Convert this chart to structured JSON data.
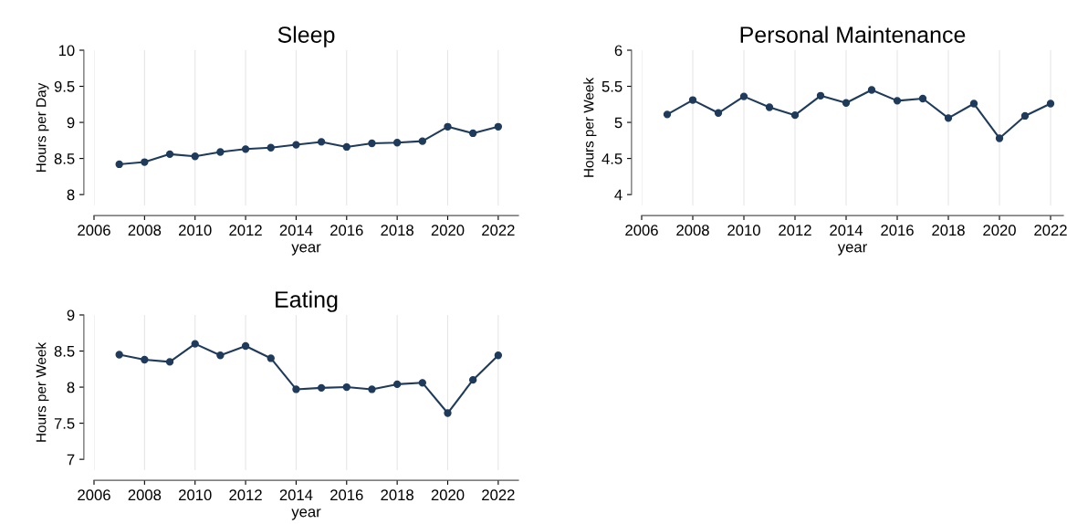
{
  "chart_data": [
    {
      "type": "line",
      "title": "Sleep",
      "xlabel": "year",
      "ylabel": "Hours per Day",
      "x": [
        2007,
        2008,
        2009,
        2010,
        2011,
        2012,
        2013,
        2014,
        2015,
        2016,
        2017,
        2018,
        2019,
        2020,
        2021,
        2022
      ],
      "series": [
        {
          "color": "#1f3b5c",
          "values": [
            8.42,
            8.45,
            8.56,
            8.53,
            8.59,
            8.63,
            8.65,
            8.69,
            8.73,
            8.66,
            8.71,
            8.72,
            8.74,
            8.94,
            8.85,
            8.94
          ]
        }
      ],
      "xlim": [
        2006,
        2022.8
      ],
      "xticks": [
        2006,
        2008,
        2010,
        2012,
        2014,
        2016,
        2018,
        2020,
        2022
      ],
      "ylim": [
        7.85,
        10
      ],
      "yticks": [
        8,
        8.5,
        9,
        9.5,
        10
      ],
      "grid": "x",
      "marker": "circle",
      "line_style": "solid"
    },
    {
      "type": "line",
      "title": "Personal Maintenance",
      "xlabel": "year",
      "ylabel": "Hours per Week",
      "x": [
        2007,
        2008,
        2009,
        2010,
        2011,
        2012,
        2013,
        2014,
        2015,
        2016,
        2017,
        2018,
        2019,
        2020,
        2021,
        2022
      ],
      "series": [
        {
          "color": "#1f3b5c",
          "values": [
            5.11,
            5.31,
            5.13,
            5.36,
            5.21,
            5.1,
            5.37,
            5.27,
            5.45,
            5.3,
            5.33,
            5.06,
            5.26,
            4.78,
            5.09,
            5.26
          ]
        }
      ],
      "xlim": [
        2006,
        2022.5
      ],
      "xticks": [
        2006,
        2008,
        2010,
        2012,
        2014,
        2016,
        2018,
        2020,
        2022
      ],
      "ylim": [
        3.85,
        6
      ],
      "yticks": [
        4,
        4.5,
        5,
        5.5,
        6
      ],
      "grid": "x",
      "marker": "circle",
      "line_style": "solid"
    },
    {
      "type": "line",
      "title": "Eating",
      "xlabel": "year",
      "ylabel": "Hours per Week",
      "x": [
        2007,
        2008,
        2009,
        2010,
        2011,
        2012,
        2013,
        2014,
        2015,
        2016,
        2017,
        2018,
        2019,
        2020,
        2021,
        2022
      ],
      "series": [
        {
          "color": "#1f3b5c",
          "values": [
            8.45,
            8.38,
            8.35,
            8.6,
            8.44,
            8.57,
            8.4,
            7.97,
            7.99,
            8.0,
            7.97,
            8.04,
            8.06,
            7.64,
            8.1,
            8.44
          ]
        }
      ],
      "xlim": [
        2006,
        2022.8
      ],
      "xticks": [
        2006,
        2008,
        2010,
        2012,
        2014,
        2016,
        2018,
        2020,
        2022
      ],
      "ylim": [
        6.85,
        9
      ],
      "yticks": [
        7,
        7.5,
        8,
        8.5,
        9
      ],
      "grid": "x",
      "marker": "circle",
      "line_style": "solid"
    }
  ]
}
